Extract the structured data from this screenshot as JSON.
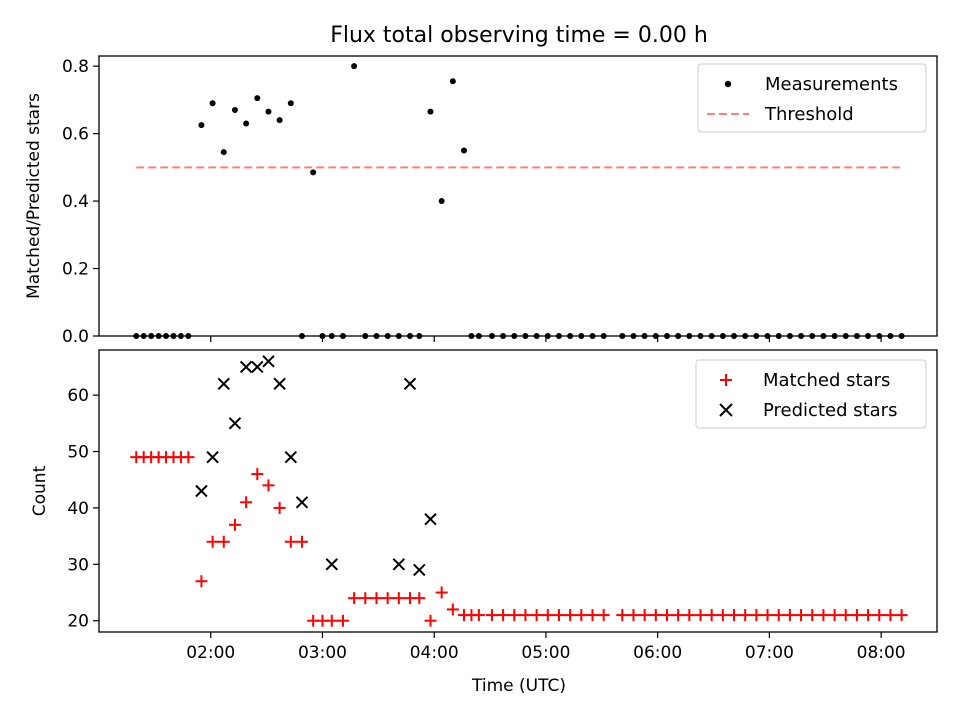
{
  "figure": {
    "title": "Flux total observing time = 0.00 h",
    "xlabel": "Time (UTC)"
  },
  "colors": {
    "measurements": "#000000",
    "threshold": "#ff7f7f",
    "matched": "#ff0000",
    "predicted": "#000000"
  },
  "chart_data": [
    {
      "type": "scatter",
      "panel": "top",
      "ylabel": "Matched/Predicted stars",
      "xlabel": "",
      "xlim": [
        "01:00",
        "08:30"
      ],
      "ylim": [
        0,
        0.83
      ],
      "yticks": [
        0.0,
        0.2,
        0.4,
        0.6,
        0.8
      ],
      "ytick_labels": [
        "0.0",
        "0.2",
        "0.4",
        "0.6",
        "0.8"
      ],
      "legend": {
        "location": "upper right",
        "entries": [
          "Measurements",
          "Threshold"
        ]
      },
      "series": [
        {
          "name": "Measurements",
          "x": [
            "01:20",
            "01:24",
            "01:28",
            "01:32",
            "01:36",
            "01:40",
            "01:44",
            "01:48",
            "01:55",
            "02:01",
            "02:07",
            "02:13",
            "02:19",
            "02:25",
            "02:31",
            "02:37",
            "02:43",
            "02:49",
            "02:55",
            "03:00",
            "03:05",
            "03:11",
            "03:17",
            "03:23",
            "03:29",
            "03:35",
            "03:41",
            "03:47",
            "03:52",
            "03:58",
            "04:04",
            "04:10",
            "04:16",
            "04:20",
            "04:24",
            "04:31",
            "04:37",
            "04:43",
            "04:49",
            "04:55",
            "05:01",
            "05:07",
            "05:13",
            "05:19",
            "05:25",
            "05:31",
            "05:41",
            "05:47",
            "05:53",
            "05:59",
            "06:05",
            "06:11",
            "06:17",
            "06:23",
            "06:29",
            "06:35",
            "06:41",
            "06:47",
            "06:53",
            "06:59",
            "07:05",
            "07:11",
            "07:17",
            "07:23",
            "07:29",
            "07:35",
            "07:41",
            "07:47",
            "07:53",
            "07:59",
            "08:05",
            "08:11"
          ],
          "y": [
            0,
            0,
            0,
            0,
            0,
            0,
            0,
            0,
            0.625,
            0.69,
            0.545,
            0.67,
            0.63,
            0.705,
            0.665,
            0.64,
            0.69,
            0,
            0.485,
            0,
            0,
            0,
            0.8,
            0,
            0,
            0,
            0,
            0,
            0,
            0.665,
            0.4,
            0.755,
            0.55,
            0,
            0,
            0,
            0,
            0,
            0,
            0,
            0,
            0,
            0,
            0,
            0,
            0,
            0,
            0,
            0,
            0,
            0,
            0,
            0,
            0,
            0,
            0,
            0,
            0,
            0,
            0,
            0,
            0,
            0,
            0,
            0,
            0,
            0,
            0,
            0,
            0,
            0,
            0
          ]
        },
        {
          "name": "Threshold",
          "style": "dashed",
          "x": [
            "01:20",
            "08:10"
          ],
          "y": [
            0.5,
            0.5
          ]
        }
      ]
    },
    {
      "type": "scatter",
      "panel": "bottom",
      "ylabel": "Count",
      "xlabel": "Time (UTC)",
      "xlim": [
        "01:00",
        "08:30"
      ],
      "xticks": [
        "02:00",
        "03:00",
        "04:00",
        "05:00",
        "06:00",
        "07:00",
        "08:00"
      ],
      "ylim": [
        18,
        68
      ],
      "yticks": [
        20,
        30,
        40,
        50,
        60
      ],
      "ytick_labels": [
        "20",
        "30",
        "40",
        "50",
        "60"
      ],
      "legend": {
        "location": "upper right",
        "entries": [
          "Matched stars",
          "Predicted stars"
        ]
      },
      "series": [
        {
          "name": "Matched stars",
          "marker": "+",
          "x": [
            "01:20",
            "01:24",
            "01:28",
            "01:32",
            "01:36",
            "01:40",
            "01:44",
            "01:48",
            "01:55",
            "02:01",
            "02:07",
            "02:13",
            "02:19",
            "02:25",
            "02:31",
            "02:37",
            "02:43",
            "02:49",
            "02:55",
            "03:00",
            "03:05",
            "03:11",
            "03:17",
            "03:23",
            "03:29",
            "03:35",
            "03:41",
            "03:47",
            "03:52",
            "03:58",
            "04:04",
            "04:10",
            "04:16",
            "04:20",
            "04:24",
            "04:31",
            "04:37",
            "04:43",
            "04:49",
            "04:55",
            "05:01",
            "05:07",
            "05:13",
            "05:19",
            "05:25",
            "05:31",
            "05:41",
            "05:47",
            "05:53",
            "05:59",
            "06:05",
            "06:11",
            "06:17",
            "06:23",
            "06:29",
            "06:35",
            "06:41",
            "06:47",
            "06:53",
            "06:59",
            "07:05",
            "07:11",
            "07:17",
            "07:23",
            "07:29",
            "07:35",
            "07:41",
            "07:47",
            "07:53",
            "07:59",
            "08:05",
            "08:11"
          ],
          "y": [
            49,
            49,
            49,
            49,
            49,
            49,
            49,
            49,
            27,
            34,
            34,
            37,
            41,
            46,
            44,
            40,
            34,
            34,
            20,
            20,
            20,
            20,
            24,
            24,
            24,
            24,
            24,
            24,
            24,
            20,
            25,
            22,
            21,
            21,
            21,
            21,
            21,
            21,
            21,
            21,
            21,
            21,
            21,
            21,
            21,
            21,
            21,
            21,
            21,
            21,
            21,
            21,
            21,
            21,
            21,
            21,
            21,
            21,
            21,
            21,
            21,
            21,
            21,
            21,
            21,
            21,
            21,
            21,
            21,
            21,
            21,
            21
          ]
        },
        {
          "name": "Predicted stars",
          "marker": "x",
          "x": [
            "01:55",
            "02:01",
            "02:07",
            "02:13",
            "02:19",
            "02:25",
            "02:31",
            "02:37",
            "02:43",
            "02:49",
            "03:05",
            "03:41",
            "03:47",
            "03:52",
            "03:58"
          ],
          "y": [
            43,
            49,
            62,
            55,
            65,
            65,
            66,
            62,
            49,
            41,
            30,
            30,
            62,
            29,
            38
          ]
        }
      ]
    }
  ]
}
